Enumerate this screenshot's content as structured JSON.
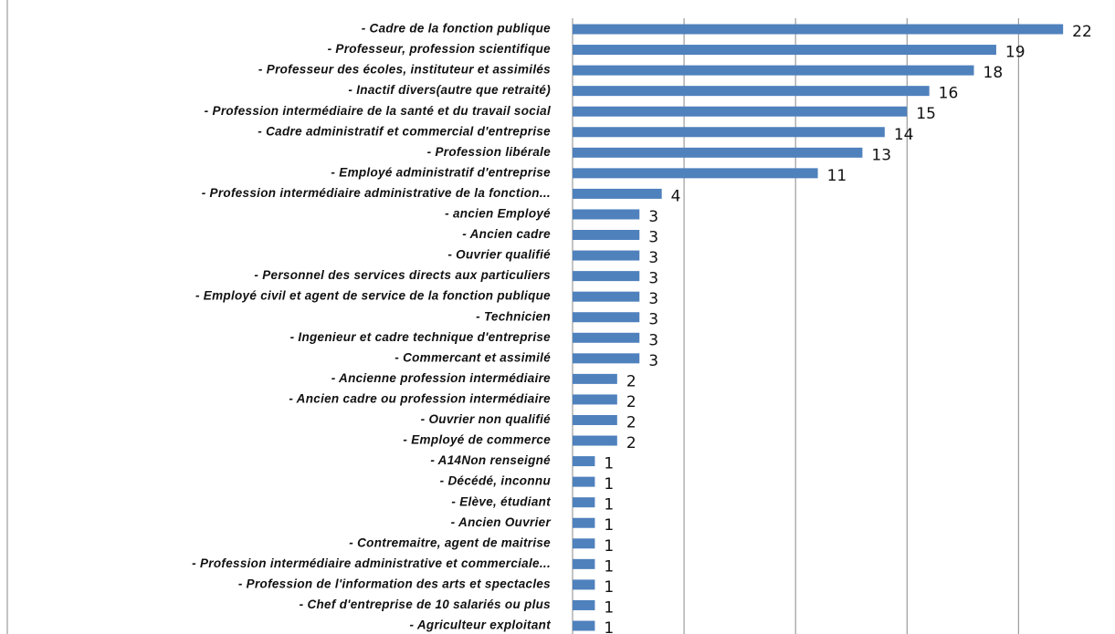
{
  "chart_data": {
    "type": "barh",
    "categories": [
      "- Cadre de la fonction publique",
      "- Professeur, profession scientifique",
      "- Professeur des écoles, instituteur et assimilés",
      "- Inactif divers(autre que retraité)",
      "- Profession intermédiaire de la santé et du travail social",
      "- Cadre administratif et commercial d'entreprise",
      "- Profession libérale",
      "- Employé administratif d'entreprise",
      "- Profession intermédiaire administrative de la fonction...",
      "- ancien Employé",
      "- Ancien cadre",
      "- Ouvrier qualifié",
      "- Personnel des services directs aux particuliers",
      "- Employé civil et agent de service de la fonction publique",
      "- Technicien",
      "- Ingenieur et cadre technique d'entreprise",
      "- Commercant et assimilé",
      "- Ancienne profession intermédiaire",
      "- Ancien cadre ou profession intermédiaire",
      "- Ouvrier non qualifié",
      "- Employé de commerce",
      "- A14Non renseigné",
      "- Décédé, inconnu",
      "- Elève, étudiant",
      "- Ancien Ouvrier",
      "- Contremaitre, agent de maitrise",
      "- Profession intermédiaire administrative et commerciale...",
      "- Profession de l'information des arts et spectacles",
      "- Chef d'entreprise de 10 salariés ou plus",
      "- Agriculteur exploitant"
    ],
    "values": [
      22,
      19,
      18,
      16,
      15,
      14,
      13,
      11,
      4,
      3,
      3,
      3,
      3,
      3,
      3,
      3,
      3,
      2,
      2,
      2,
      2,
      1,
      1,
      1,
      1,
      1,
      1,
      1,
      1,
      1
    ],
    "color": "#4f81bd",
    "xlim": [
      0,
      24
    ],
    "xticks": [
      0,
      5,
      10,
      15,
      20
    ],
    "grid": true
  }
}
